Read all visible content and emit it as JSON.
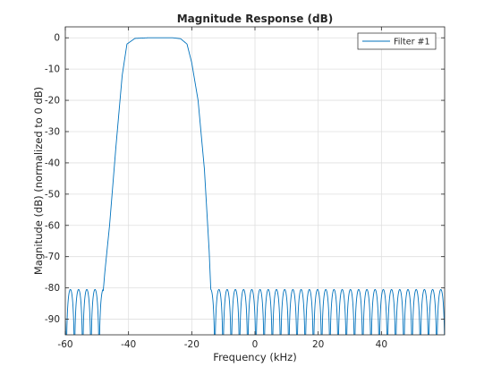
{
  "chart_data": {
    "type": "line",
    "title": "Magnitude Response (dB)",
    "xlabel": "Frequency (kHz)",
    "ylabel": "Magnitude (dB) (normalized to 0 dB)",
    "xlim": [
      -60,
      60
    ],
    "ylim": [
      -95,
      3.5
    ],
    "xticks": [
      -60,
      -40,
      -20,
      0,
      20,
      40
    ],
    "yticks": [
      0,
      -10,
      -20,
      -30,
      -40,
      -50,
      -60,
      -70,
      -80,
      -90
    ],
    "grid": true,
    "legend_position": "top-right",
    "series": [
      {
        "name": "Filter #1",
        "color": "#0072BD",
        "passband_khz": [
          -40.5,
          -21.5
        ],
        "passband_peak_db": 0,
        "transition_edges_khz": [
          -48,
          -14
        ],
        "stopband_sidelobe_peak_db": -80.5,
        "stopband_lobe_spacing_khz": 2.6,
        "points_x": [
          -60,
          -48,
          -47.5,
          -46,
          -44,
          -42,
          -40.5,
          -38,
          -34,
          -30,
          -26,
          -23.5,
          -21.5,
          -20,
          -18,
          -16,
          -14.5,
          -14,
          -13.5,
          60
        ],
        "points_y": [
          -80.5,
          -81,
          -75,
          -60,
          -35,
          -12,
          -2,
          -0.2,
          0,
          0,
          0,
          -0.3,
          -2,
          -8,
          -20,
          -42,
          -68,
          -80,
          -81,
          -80.5
        ]
      }
    ]
  }
}
